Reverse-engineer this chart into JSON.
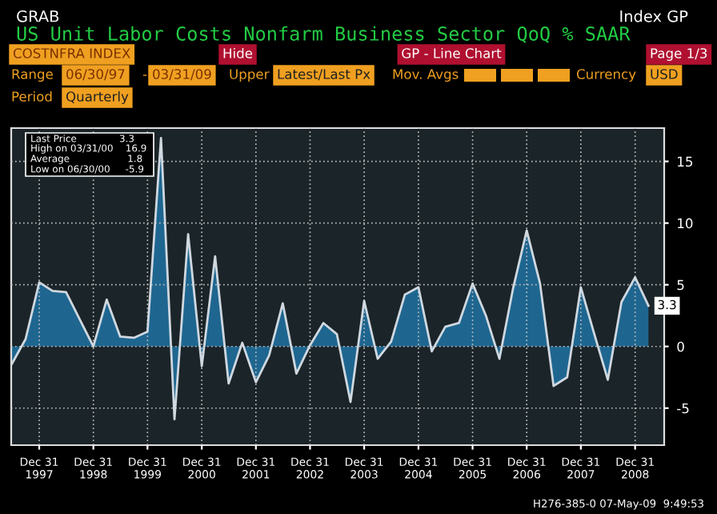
{
  "chart_data": {
    "type": "area",
    "title": "US Unit Labor Costs Nonfarm Business Sector QoQ % SAAR",
    "x": [
      "1997-06-30",
      "1997-09-30",
      "1997-12-31",
      "1998-03-31",
      "1998-06-30",
      "1998-09-30",
      "1998-12-31",
      "1999-03-31",
      "1999-06-30",
      "1999-09-30",
      "1999-12-31",
      "2000-03-31",
      "2000-06-30",
      "2000-09-30",
      "2000-12-31",
      "2001-03-31",
      "2001-06-30",
      "2001-09-30",
      "2001-12-31",
      "2002-03-31",
      "2002-06-30",
      "2002-09-30",
      "2002-12-31",
      "2003-03-31",
      "2003-06-30",
      "2003-09-30",
      "2003-12-31",
      "2004-03-31",
      "2004-06-30",
      "2004-09-30",
      "2004-12-31",
      "2005-03-31",
      "2005-06-30",
      "2005-09-30",
      "2005-12-31",
      "2006-03-31",
      "2006-06-30",
      "2006-09-30",
      "2006-12-31",
      "2007-03-31",
      "2007-06-30",
      "2007-09-30",
      "2007-12-31",
      "2008-03-31",
      "2008-06-30",
      "2008-09-30",
      "2008-12-31",
      "2009-03-31"
    ],
    "series": [
      {
        "color": "#1e6690",
        "values": [
          -1.4,
          0.6,
          5.2,
          4.5,
          4.4,
          2.2,
          0.0,
          3.8,
          0.8,
          0.7,
          1.2,
          16.9,
          -5.9,
          9.1,
          -1.6,
          7.3,
          -3.0,
          0.3,
          -2.9,
          -0.7,
          3.5,
          -2.2,
          0.1,
          1.9,
          1.0,
          -4.5,
          3.7,
          -1.0,
          0.4,
          4.2,
          4.8,
          -0.4,
          1.6,
          1.9,
          5.1,
          2.5,
          -1.0,
          4.7,
          9.4,
          5.1,
          -3.2,
          -2.5,
          4.8,
          1.0,
          -2.7,
          3.6,
          5.6,
          3.3
        ],
        "value_labels": [
          null,
          null,
          null,
          null,
          null,
          null,
          null,
          null,
          null,
          null,
          null,
          null,
          null,
          null,
          null,
          null,
          null,
          null,
          null,
          null,
          null,
          null,
          null,
          null,
          null,
          null,
          null,
          null,
          null,
          null,
          null,
          null,
          null,
          null,
          null,
          null,
          null,
          null,
          null,
          null,
          null,
          null,
          null,
          null,
          null,
          null,
          null,
          "3.3"
        ]
      }
    ],
    "xlim": [
      "1997-06-25",
      "2009-07-15"
    ],
    "xticks": [
      {
        "value": "1997-12-31",
        "label": "Dec 31\n1997"
      },
      {
        "value": "1998-12-31",
        "label": "Dec 31\n1998"
      },
      {
        "value": "1999-12-31",
        "label": "Dec 31\n1999"
      },
      {
        "value": "2000-12-31",
        "label": "Dec 31\n2000"
      },
      {
        "value": "2001-12-31",
        "label": "Dec 31\n2001"
      },
      {
        "value": "2002-12-31",
        "label": "Dec 31\n2002"
      },
      {
        "value": "2003-12-31",
        "label": "Dec 31\n2003"
      },
      {
        "value": "2004-12-31",
        "label": "Dec 31\n2004"
      },
      {
        "value": "2005-12-31",
        "label": "Dec 31\n2005"
      },
      {
        "value": "2006-12-31",
        "label": "Dec 31\n2006"
      },
      {
        "value": "2007-12-31",
        "label": "Dec 31\n2007"
      },
      {
        "value": "2008-12-31",
        "label": "Dec 31\n2008"
      }
    ],
    "ylim": [
      -8,
      17.7
    ],
    "yticks": [
      -5,
      0,
      5,
      10,
      15
    ],
    "grid": true,
    "legend": false,
    "annotations": [
      "GRAB",
      "Index GP",
      "COSTNFRA INDEX",
      "Hide",
      "GP - Line Chart",
      "Page 1/3",
      "Range",
      "06/30/97",
      "-",
      "03/31/09",
      "Upper",
      "Latest/Last Px",
      "Mov. Avgs",
      "Currency",
      "USD",
      "Period",
      "Quarterly",
      "Last Price              3.3",
      "High on 03/31/00    16.9",
      "Average                   1.8",
      "Low on 06/30/00     -5.9",
      "H276-385-0 07-May-09  9:49:53"
    ]
  }
}
